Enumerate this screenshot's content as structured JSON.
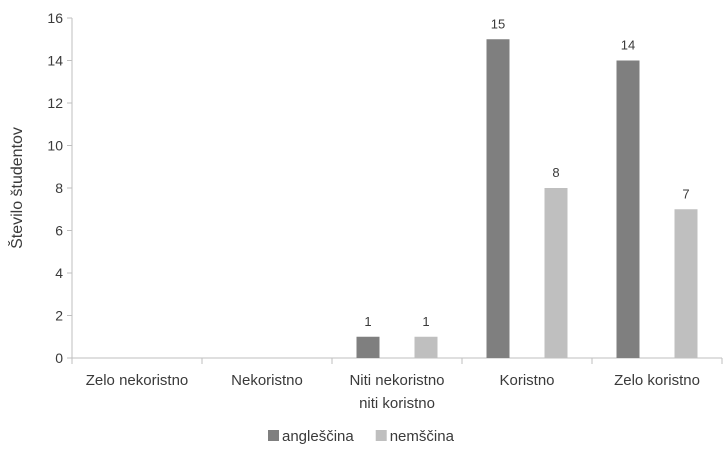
{
  "chart_data": {
    "type": "bar",
    "categories": [
      "Zelo nekoristno",
      "Nekoristno",
      "Niti nekoristno\nniti koristno",
      "Koristno",
      "Zelo koristno"
    ],
    "series": [
      {
        "name": "angleščina",
        "values": [
          null,
          null,
          1,
          15,
          14
        ],
        "color": "#7f7f7f"
      },
      {
        "name": "nemščina",
        "values": [
          null,
          null,
          1,
          8,
          7
        ],
        "color": "#bfbfbf"
      }
    ],
    "ylabel": "Število študentov",
    "xlabel": "",
    "ylim": [
      0,
      16
    ],
    "yticks": [
      0,
      2,
      4,
      6,
      8,
      10,
      12,
      14,
      16
    ],
    "grid": false,
    "legend_position": "bottom"
  }
}
